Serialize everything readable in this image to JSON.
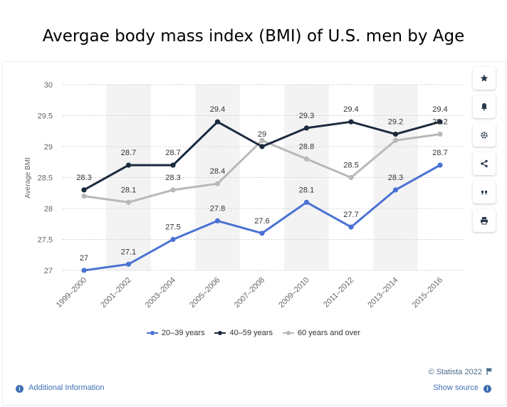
{
  "page": {
    "title": "Avergae body mass index (BMI) of U.S. men by Age",
    "credit": "© Statista 2022",
    "additional_info": "Additional Information",
    "show_source": "Show source"
  },
  "sidebar": {
    "buttons": [
      {
        "name": "favorite-button",
        "icon": "star-icon"
      },
      {
        "name": "notification-button",
        "icon": "bell-icon"
      },
      {
        "name": "settings-button",
        "icon": "gear-icon"
      },
      {
        "name": "share-button",
        "icon": "share-icon"
      },
      {
        "name": "cite-button",
        "icon": "quote-icon"
      },
      {
        "name": "print-button",
        "icon": "print-icon"
      }
    ]
  },
  "colors": {
    "series1": "#4a72d4",
    "series2": "#1b2a3d",
    "series3": "#b8b8b8",
    "band": "#f3f3f3",
    "grid": "#d0d0d0"
  },
  "chart_data": {
    "type": "line",
    "title": "Avergae body mass index (BMI) of U.S. men by Age",
    "xlabel": "",
    "ylabel": "Average BMI",
    "ylim": [
      27,
      30
    ],
    "yticks": [
      "27",
      "27.5",
      "28",
      "28.5",
      "29",
      "29.5",
      "30"
    ],
    "grid": true,
    "legend_position": "bottom",
    "categories": [
      "1999-2000",
      "2001-2002",
      "2003-2004",
      "2005-2006",
      "2007-2008",
      "2009-2010",
      "2011-2012",
      "2013-2014",
      "2015-2016"
    ],
    "series": [
      {
        "name": "20-39 years",
        "values": [
          27,
          27.1,
          27.5,
          27.8,
          27.6,
          28.1,
          27.7,
          28.3,
          28.7
        ],
        "labels": [
          "27",
          "27.1",
          "27.5",
          "27.8",
          "27.6",
          "28.1",
          "27.7",
          "28.3",
          "28.7"
        ]
      },
      {
        "name": "40-59 years",
        "values": [
          28.3,
          28.7,
          28.7,
          29.4,
          29,
          29.3,
          29.4,
          29.2,
          29.4
        ],
        "labels": [
          "28.3",
          "28.7",
          "28.7",
          "29.4",
          "29",
          "29.3",
          "29.4",
          "29.2",
          "29.4"
        ]
      },
      {
        "name": "60 years and over",
        "values": [
          28.2,
          28.1,
          28.3,
          28.4,
          29.1,
          28.8,
          28.5,
          29.1,
          29.2
        ],
        "labels": [
          "",
          "28.1",
          "28.3",
          "28.4",
          "",
          "28.8",
          "28.5",
          "",
          "29.2"
        ]
      }
    ]
  }
}
